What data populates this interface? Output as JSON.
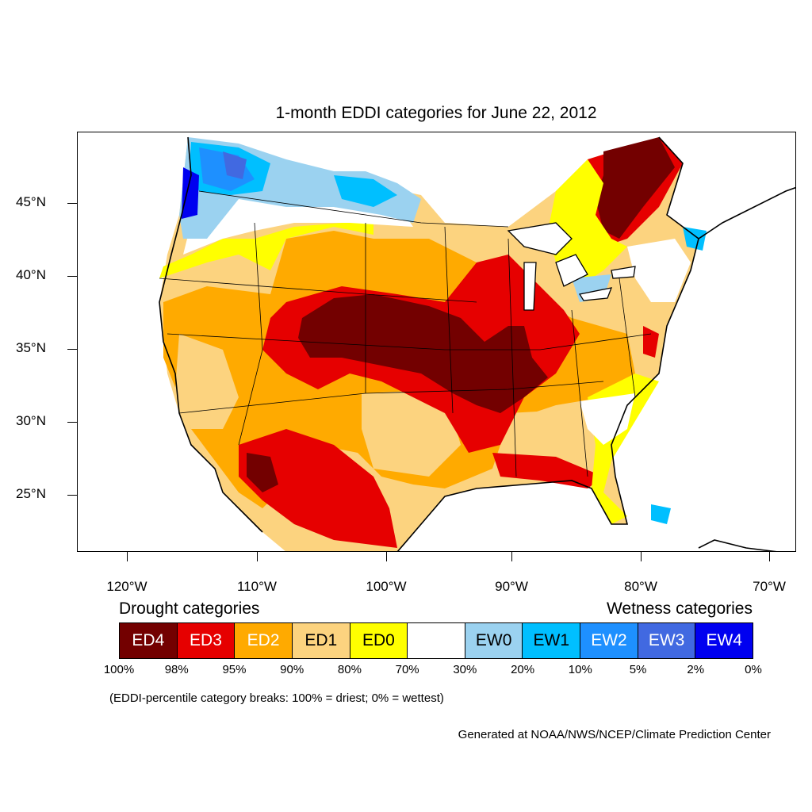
{
  "title": "1-month EDDI categories for June 22, 2012",
  "lat_labels": [
    "45°N",
    "40°N",
    "35°N",
    "30°N",
    "25°N"
  ],
  "lon_labels": [
    "120°W",
    "110°W",
    "100°W",
    "90°W",
    "80°W",
    "70°W"
  ],
  "legend": {
    "drought_heading": "Drought categories",
    "wetness_heading": "Wetness categories",
    "categories": [
      {
        "label": "ED4",
        "color": "#730000",
        "text_color": "#ffffff"
      },
      {
        "label": "ED3",
        "color": "#e60000",
        "text_color": "#ffffff"
      },
      {
        "label": "ED2",
        "color": "#ffaa00",
        "text_color": "#ffffff"
      },
      {
        "label": "ED1",
        "color": "#fcd37f",
        "text_color": "#000000"
      },
      {
        "label": "ED0",
        "color": "#ffff00",
        "text_color": "#000000"
      },
      {
        "label": "",
        "color": "#ffffff",
        "text_color": "#000000"
      },
      {
        "label": "EW0",
        "color": "#9bd2f0",
        "text_color": "#000000"
      },
      {
        "label": "EW1",
        "color": "#00bfff",
        "text_color": "#000000"
      },
      {
        "label": "EW2",
        "color": "#1e90ff",
        "text_color": "#ffffff"
      },
      {
        "label": "EW3",
        "color": "#4169e1",
        "text_color": "#ffffff"
      },
      {
        "label": "EW4",
        "color": "#0000f0",
        "text_color": "#ffffff"
      }
    ],
    "percent_breaks": [
      "100%",
      "98%",
      "95%",
      "90%",
      "80%",
      "70%",
      "30%",
      "20%",
      "10%",
      "5%",
      "2%",
      "0%"
    ]
  },
  "note": "(EDDI-percentile category breaks: 100% = driest; 0% = wettest)",
  "credit": "Generated at NOAA/NWS/NCEP/Climate Prediction Center"
}
